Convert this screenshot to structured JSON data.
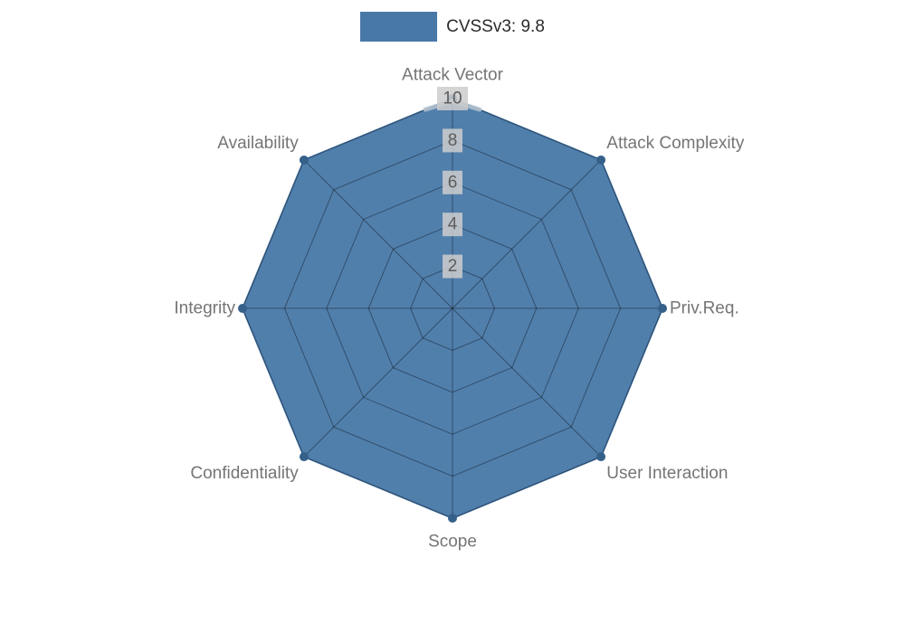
{
  "legend": {
    "label": "CVSSv3: 9.8",
    "color": "#4878a8"
  },
  "chart_data": {
    "type": "radar",
    "title": "CVSSv3: 9.8",
    "categories": [
      "Attack Vector",
      "Attack Complexity",
      "Priv.Req.",
      "User Interaction",
      "Scope",
      "Confidentiality",
      "Integrity",
      "Availability"
    ],
    "series": [
      {
        "name": "CVSSv3: 9.8",
        "values": [
          10,
          10,
          10,
          10,
          10,
          10,
          10,
          10
        ]
      }
    ],
    "ticks": [
      2,
      4,
      6,
      8,
      10
    ],
    "range": [
      0,
      10
    ],
    "grid": true,
    "legend_position": "top",
    "fill_color": "#4878a8",
    "vertex_dot_color": "#35608a",
    "grid_color": "rgba(0,0,0,0.38)",
    "label_color": "#757575",
    "tick_color": "#5c5c5c",
    "tick_bg": "#cccccc",
    "highlight_color": "#b9c6d1"
  }
}
